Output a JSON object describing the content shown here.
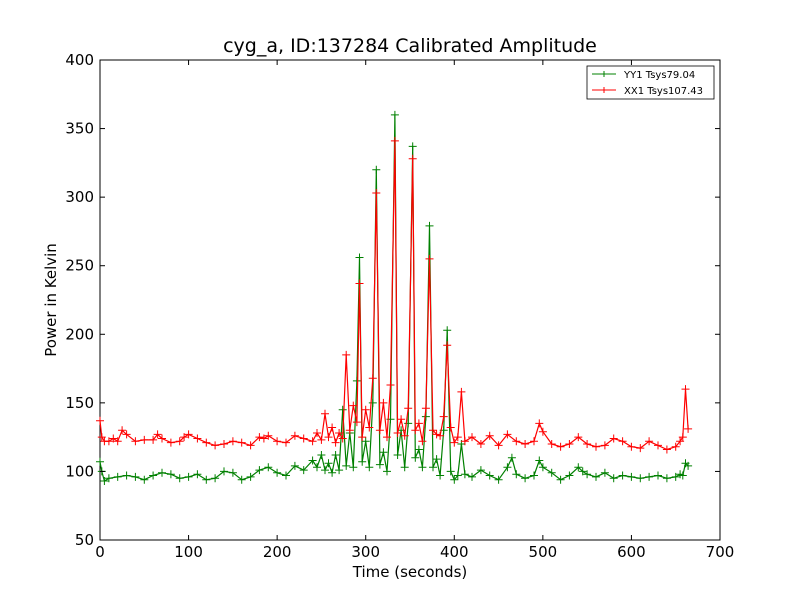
{
  "chart_data": {
    "type": "line",
    "title": "cyg_a, ID:137284 Calibrated Amplitude",
    "xlabel": "Time (seconds)",
    "ylabel": "Power in Kelvin",
    "xlim": [
      0,
      700
    ],
    "ylim": [
      50,
      400
    ],
    "xticks": [
      "0",
      "100",
      "200",
      "300",
      "400",
      "500",
      "600",
      "700"
    ],
    "yticks": [
      "50",
      "100",
      "150",
      "200",
      "250",
      "300",
      "350",
      "400"
    ],
    "grid": false,
    "legend_position": "top-right",
    "marker": "plus",
    "series": [
      {
        "name": "YY1 Tsys79.04",
        "color": "#008000",
        "x": [
          0,
          2,
          5,
          10,
          20,
          30,
          40,
          50,
          60,
          70,
          80,
          90,
          100,
          110,
          120,
          130,
          140,
          150,
          160,
          170,
          180,
          190,
          200,
          210,
          220,
          230,
          240,
          245,
          250,
          254,
          258,
          262,
          266,
          270,
          274,
          278,
          282,
          286,
          290,
          293,
          296,
          300,
          304,
          308,
          312,
          316,
          320,
          324,
          328,
          333,
          336,
          340,
          344,
          348,
          353,
          356,
          360,
          364,
          368,
          372,
          376,
          380,
          384,
          388,
          392,
          396,
          400,
          404,
          408,
          412,
          420,
          430,
          440,
          450,
          460,
          465,
          470,
          480,
          490,
          496,
          500,
          510,
          520,
          530,
          540,
          545,
          550,
          560,
          570,
          580,
          590,
          600,
          610,
          620,
          630,
          640,
          650,
          655,
          658,
          661,
          664
        ],
        "y": [
          107,
          100,
          93,
          95,
          96,
          97,
          96,
          94,
          97,
          99,
          98,
          95,
          96,
          98,
          94,
          95,
          100,
          99,
          94,
          96,
          101,
          103,
          99,
          97,
          104,
          101,
          108,
          103,
          112,
          101,
          106,
          99,
          112,
          101,
          145,
          104,
          128,
          103,
          166,
          256,
          107,
          122,
          103,
          150,
          320,
          105,
          114,
          100,
          138,
          360,
          112,
          130,
          103,
          135,
          337,
          110,
          116,
          103,
          140,
          279,
          103,
          109,
          97,
          130,
          203,
          100,
          94,
          97,
          120,
          98,
          96,
          101,
          97,
          94,
          103,
          110,
          98,
          95,
          97,
          108,
          103,
          99,
          94,
          97,
          103,
          100,
          98,
          96,
          99,
          95,
          97,
          96,
          95,
          96,
          97,
          95,
          96,
          98,
          97,
          106,
          104
        ]
      },
      {
        "name": "XX1 Tsys107.43",
        "color": "#ff0000",
        "x": [
          0,
          2,
          5,
          10,
          15,
          20,
          25,
          30,
          40,
          50,
          60,
          65,
          70,
          80,
          90,
          95,
          100,
          110,
          120,
          130,
          140,
          150,
          160,
          170,
          180,
          185,
          190,
          200,
          210,
          220,
          230,
          240,
          245,
          250,
          254,
          258,
          262,
          266,
          270,
          274,
          278,
          282,
          286,
          290,
          293,
          296,
          300,
          304,
          308,
          312,
          316,
          320,
          324,
          328,
          333,
          336,
          340,
          344,
          348,
          353,
          356,
          360,
          364,
          368,
          372,
          376,
          380,
          384,
          388,
          392,
          396,
          400,
          404,
          408,
          412,
          420,
          430,
          440,
          450,
          460,
          470,
          480,
          490,
          496,
          500,
          510,
          520,
          530,
          540,
          550,
          560,
          570,
          580,
          590,
          600,
          610,
          620,
          630,
          640,
          650,
          655,
          658,
          661,
          664
        ],
        "y": [
          137,
          125,
          122,
          122,
          124,
          122,
          130,
          127,
          122,
          123,
          123,
          127,
          124,
          121,
          122,
          125,
          127,
          124,
          121,
          119,
          120,
          122,
          121,
          119,
          125,
          124,
          126,
          122,
          121,
          126,
          124,
          122,
          128,
          123,
          142,
          125,
          132,
          121,
          128,
          124,
          185,
          130,
          148,
          136,
          237,
          125,
          145,
          132,
          168,
          303,
          130,
          150,
          125,
          163,
          341,
          128,
          138,
          126,
          146,
          328,
          130,
          135,
          122,
          146,
          255,
          130,
          127,
          126,
          140,
          192,
          132,
          121,
          125,
          158,
          122,
          125,
          120,
          126,
          119,
          127,
          122,
          120,
          122,
          135,
          129,
          120,
          118,
          120,
          125,
          120,
          118,
          119,
          124,
          122,
          118,
          117,
          122,
          119,
          116,
          118,
          122,
          125,
          160,
          131
        ]
      }
    ]
  }
}
